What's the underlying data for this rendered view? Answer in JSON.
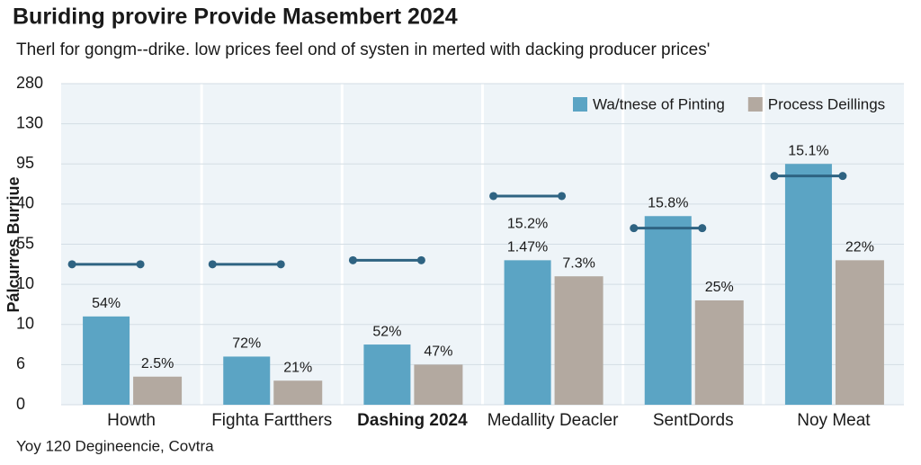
{
  "chart_data": {
    "type": "bar",
    "title": "Buriding provire Provide Masembert 2024",
    "subtitle": "Therl for gongm--drike. low prices feel ond of systen in merted with dacking producer prices'",
    "y_label": "Pálcurres Burriue",
    "footer": "Yoy 120 Degineencie, Covtra",
    "categories": [
      "Howth",
      "Fighta Fartthers",
      "Dashing 2024",
      "Medallity Deacler",
      "SentDords",
      "Noy Meat"
    ],
    "emphasis": [
      false,
      false,
      true,
      false,
      false,
      false
    ],
    "ylim": [
      0,
      8
    ],
    "yticks": [
      {
        "value": 0,
        "label": "0"
      },
      {
        "value": 1,
        "label": "6"
      },
      {
        "value": 2,
        "label": "10"
      },
      {
        "value": 3,
        "label": "10"
      },
      {
        "value": 4,
        "label": "55"
      },
      {
        "value": 5,
        "label": "40"
      },
      {
        "value": 6,
        "label": "95"
      },
      {
        "value": 7,
        "label": "130"
      },
      {
        "value": 8,
        "label": "280"
      }
    ],
    "grid": true,
    "legend": "top-right",
    "series": [
      {
        "name": "Wa/tnese of Pinting",
        "color": "#5ba4c4",
        "values": [
          2.2,
          1.2,
          1.5,
          3.6,
          4.7,
          6.0
        ],
        "notes": [
          [
            "54%"
          ],
          [
            "72%"
          ],
          [
            "52%"
          ],
          [
            "15.2%",
            "1.47%"
          ],
          [
            "15.8%"
          ],
          [
            "15.1%"
          ]
        ]
      },
      {
        "name": "Process Deillings",
        "color": "#b3a9a0",
        "values": [
          0.7,
          0.6,
          1.0,
          3.2,
          2.6,
          3.6
        ],
        "notes": [
          [
            "2.5%"
          ],
          [
            "21%"
          ],
          [
            "47%"
          ],
          [
            "7.3%"
          ],
          [
            "25%"
          ],
          [
            "22%"
          ]
        ]
      }
    ],
    "markers": {
      "color": "#2e6382",
      "values": [
        3.5,
        3.5,
        3.6,
        5.2,
        4.4,
        5.7
      ]
    }
  }
}
